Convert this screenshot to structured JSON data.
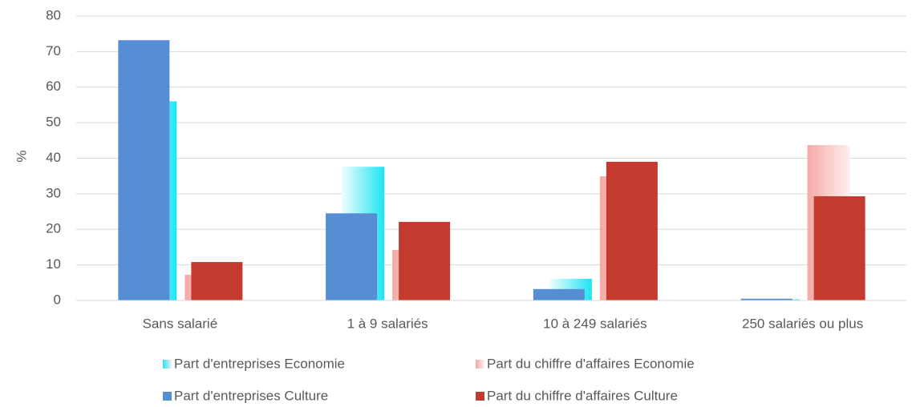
{
  "chart_data": {
    "type": "bar",
    "y_label": "%",
    "categories": [
      "Sans salarié",
      "1 à 9 salariés",
      "10 à 249 salariés",
      "250 salariés ou plus"
    ],
    "series": [
      {
        "name": "Part d'entreprises Economie",
        "color": "#1de5f2",
        "fill": "gradient",
        "values": [
          56,
          37.6,
          6.1,
          0.3
        ]
      },
      {
        "name": "Part du chiffre d'affaires Economie",
        "color": "#f4a9a4",
        "fill": "gradient",
        "values": [
          7.2,
          14.2,
          34.9,
          43.7
        ]
      },
      {
        "name": "Part d'entreprises Culture",
        "color": "#568ed4",
        "fill": "solid",
        "values": [
          73.2,
          24.5,
          3.2,
          0.5
        ]
      },
      {
        "name": "Part du chiffre d'affaires Culture",
        "color": "#c33b2f",
        "fill": "solid",
        "values": [
          10.8,
          22.1,
          39,
          29.3
        ]
      }
    ],
    "ylim": [
      0,
      80
    ],
    "yticks": [
      0,
      10,
      20,
      30,
      40,
      50,
      60,
      70,
      80
    ],
    "grid": true
  }
}
